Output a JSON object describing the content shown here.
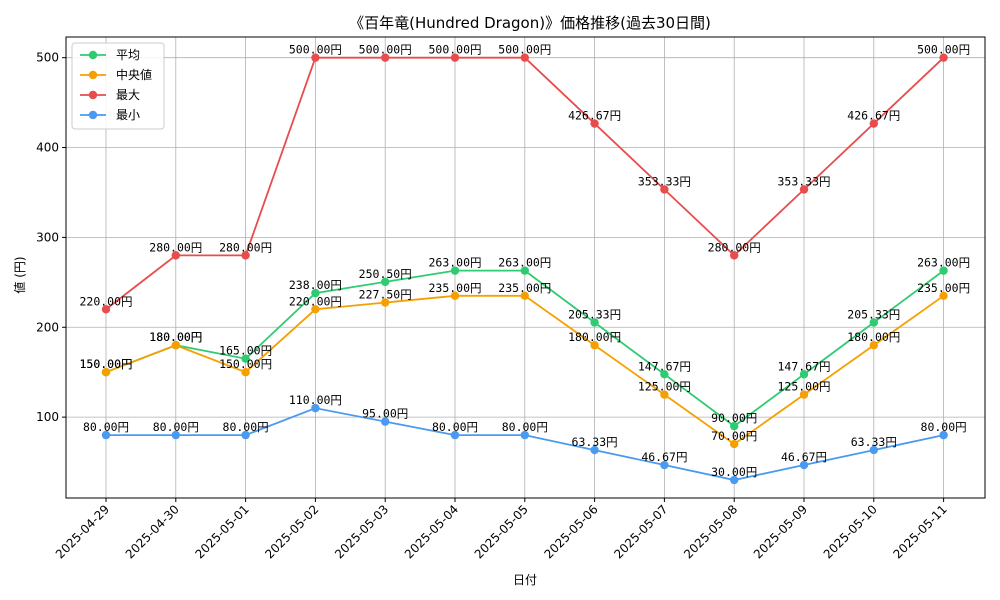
{
  "chart_data": {
    "type": "line",
    "title": "《百年竜(Hundred Dragon)》価格推移(過去30日間)",
    "xlabel": "日付",
    "ylabel": "値 (円)",
    "x": [
      "2025-04-29",
      "2025-04-30",
      "2025-05-01",
      "2025-05-02",
      "2025-05-03",
      "2025-05-04",
      "2025-05-05",
      "2025-05-06",
      "2025-05-07",
      "2025-05-08",
      "2025-05-09",
      "2025-05-10",
      "2025-05-11"
    ],
    "ylim": [
      10,
      523
    ],
    "yticks": [
      100,
      200,
      300,
      400,
      500
    ],
    "grid": true,
    "legend_position": "top-left",
    "value_suffix": "円",
    "series": [
      {
        "name": "平均",
        "color": "#2ecc71",
        "values": [
          150.0,
          180.0,
          165.0,
          238.0,
          250.5,
          263.0,
          263.0,
          205.33,
          147.67,
          90.0,
          147.67,
          205.33,
          263.0
        ]
      },
      {
        "name": "中央値",
        "color": "#f5a000",
        "values": [
          150.0,
          180.0,
          150.0,
          220.0,
          227.5,
          235.0,
          235.0,
          180.0,
          125.0,
          70.0,
          125.0,
          180.0,
          235.0
        ]
      },
      {
        "name": "最大",
        "color": "#e84c4c",
        "values": [
          220.0,
          280.0,
          280.0,
          500.0,
          500.0,
          500.0,
          500.0,
          426.67,
          353.33,
          280.0,
          353.33,
          426.67,
          500.0
        ]
      },
      {
        "name": "最小",
        "color": "#4a9af0",
        "values": [
          80.0,
          80.0,
          80.0,
          110.0,
          95.0,
          80.0,
          80.0,
          63.33,
          46.67,
          30.0,
          46.67,
          63.33,
          80.0
        ]
      }
    ]
  }
}
